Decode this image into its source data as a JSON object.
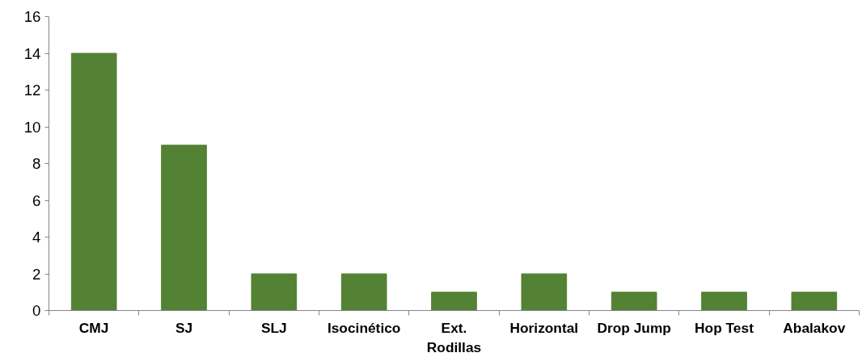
{
  "chart_data": {
    "type": "bar",
    "categories": [
      "CMJ",
      "SJ",
      "SLJ",
      "Isocinético",
      "Ext. Rodillas",
      "Horizontal",
      "Drop Jump",
      "Hop Test",
      "Abalakov"
    ],
    "values": [
      14,
      9,
      2,
      2,
      1,
      2,
      1,
      1,
      1
    ],
    "color": "#548235",
    "ylim": [
      0,
      16
    ],
    "yticks": [
      0,
      2,
      4,
      6,
      8,
      10,
      12,
      14,
      16
    ],
    "grid": false
  }
}
